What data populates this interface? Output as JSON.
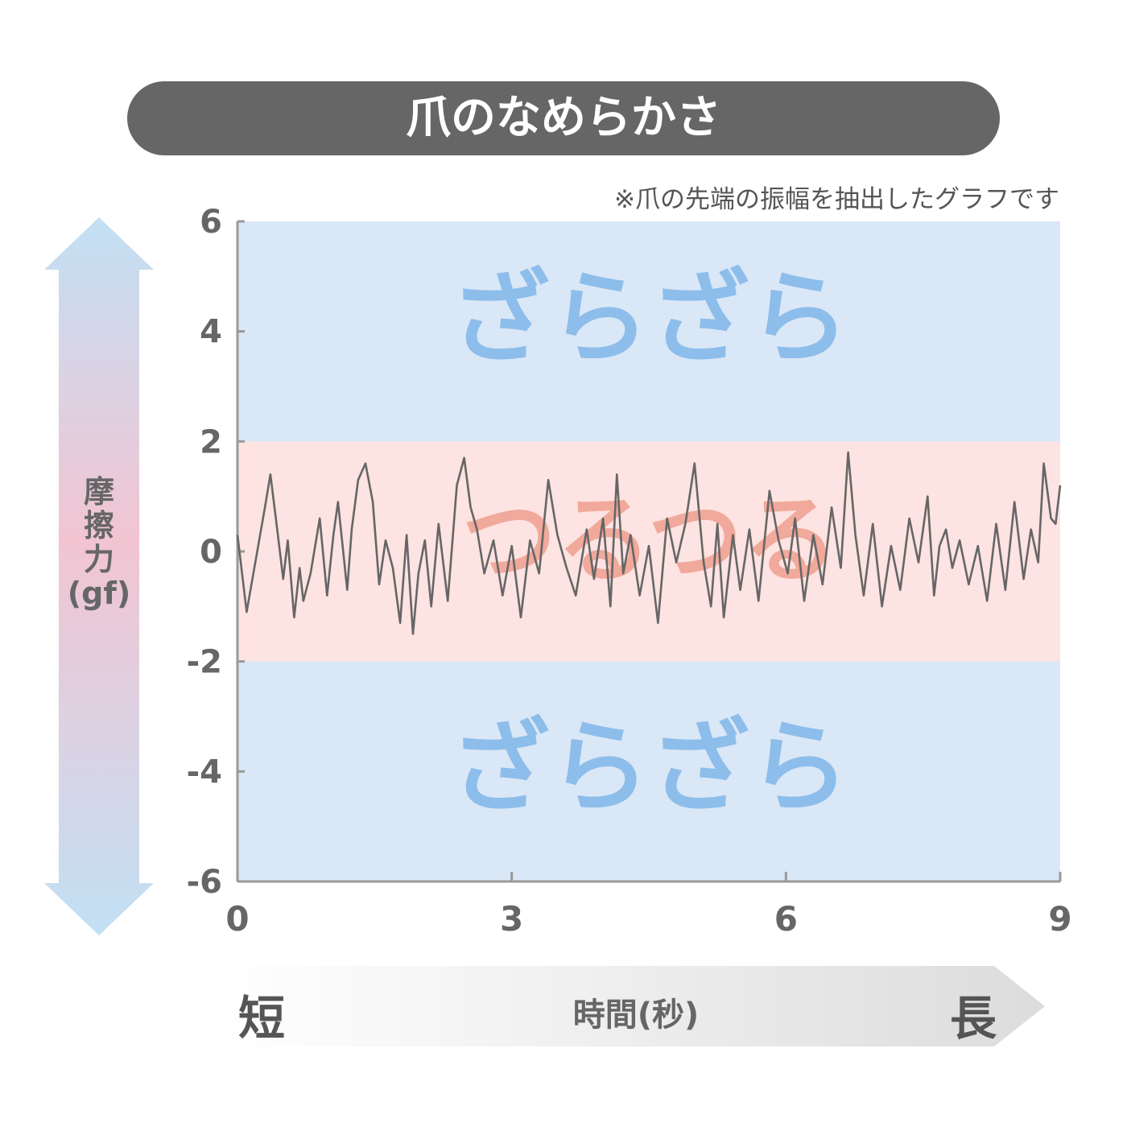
{
  "header": {
    "title": "爪のなめらかさ",
    "note": "※爪の先端の振幅を抽出したグラフです"
  },
  "colors": {
    "title_bg": "#666666",
    "zagizagi_band": "#d9e7f7",
    "tsurutsuru_band": "#fde3e1",
    "zagizagi_text": "#8dbdea",
    "tsurutsuru_text": "#f0a99b",
    "line": "#666666",
    "axis": "#999999"
  },
  "y_axis": {
    "label": "摩擦力(gf)",
    "label_lines": [
      "摩",
      "擦",
      "力",
      "(gf)"
    ]
  },
  "x_axis": {
    "label": "時間(秒)",
    "start_label": "短",
    "end_label": "長"
  },
  "zones": {
    "top": "ざらざら",
    "middle": "つるつる",
    "bottom": "ざらざら"
  },
  "chart_data": {
    "type": "line",
    "title": "爪のなめらかさ",
    "xlabel": "時間(秒)",
    "ylabel": "摩擦力(gf)",
    "xlim": [
      0,
      9
    ],
    "ylim": [
      -6,
      6
    ],
    "xticks": [
      0,
      3,
      6,
      9
    ],
    "yticks": [
      6,
      4,
      2,
      0,
      -2,
      -4,
      -6
    ],
    "grid": false,
    "bands": [
      {
        "from": 2,
        "to": 6,
        "label": "ざらざら"
      },
      {
        "from": -2,
        "to": 2,
        "label": "つるつる"
      },
      {
        "from": -6,
        "to": -2,
        "label": "ざらざら"
      }
    ],
    "series": [
      {
        "x": [
          0,
          0.1,
          0.3,
          0.36,
          0.42,
          0.5,
          0.55,
          0.62,
          0.68,
          0.72,
          0.8,
          0.9,
          0.98,
          1.05,
          1.1,
          1.2,
          1.25,
          1.32,
          1.4,
          1.48,
          1.55,
          1.62,
          1.7,
          1.78,
          1.85,
          1.92,
          1.98,
          2.05,
          2.12,
          2.2,
          2.3,
          2.4,
          2.48,
          2.55,
          2.62,
          2.7,
          2.8,
          2.9,
          3.0,
          3.1,
          3.2,
          3.3,
          3.4,
          3.5,
          3.6,
          3.7,
          3.82,
          3.9,
          4.0,
          4.08,
          4.15,
          4.22,
          4.3,
          4.4,
          4.5,
          4.6,
          4.7,
          4.8,
          4.9,
          5.0,
          5.1,
          5.18,
          5.25,
          5.32,
          5.42,
          5.5,
          5.6,
          5.7,
          5.82,
          5.92,
          6.02,
          6.1,
          6.2,
          6.3,
          6.4,
          6.5,
          6.6,
          6.68,
          6.76,
          6.85,
          6.95,
          7.05,
          7.15,
          7.25,
          7.35,
          7.45,
          7.55,
          7.62,
          7.68,
          7.75,
          7.82,
          7.9,
          8.0,
          8.1,
          8.2,
          8.3,
          8.4,
          8.5,
          8.6,
          8.68,
          8.76,
          8.82,
          8.9,
          8.95,
          9.0
        ],
        "y": [
          0.3,
          -1.1,
          0.8,
          1.4,
          0.6,
          -0.5,
          0.2,
          -1.2,
          -0.3,
          -0.9,
          -0.4,
          0.6,
          -0.8,
          0.3,
          0.9,
          -0.7,
          0.4,
          1.3,
          1.6,
          0.9,
          -0.6,
          0.2,
          -0.3,
          -1.3,
          0.3,
          -1.5,
          -0.4,
          0.2,
          -1.0,
          0.5,
          -0.9,
          1.2,
          1.7,
          0.8,
          0.4,
          -0.4,
          0.2,
          -0.8,
          0.1,
          -1.2,
          0.2,
          -0.4,
          1.3,
          0.3,
          -0.3,
          -0.8,
          0.4,
          -0.5,
          0.6,
          -1.0,
          1.4,
          -0.4,
          0.3,
          -0.8,
          0.1,
          -1.3,
          0.6,
          -0.2,
          0.5,
          1.6,
          -0.2,
          -1.0,
          0.5,
          -1.2,
          0.3,
          -0.7,
          0.4,
          -0.9,
          1.1,
          0.2,
          -0.4,
          0.6,
          -0.9,
          0.3,
          -0.6,
          0.8,
          -0.3,
          1.8,
          0.3,
          -0.8,
          0.5,
          -1.0,
          0.1,
          -0.7,
          0.6,
          -0.2,
          1.0,
          -0.8,
          0.1,
          0.4,
          -0.3,
          0.2,
          -0.6,
          0.1,
          -0.9,
          0.5,
          -0.7,
          0.9,
          -0.5,
          0.4,
          -0.2,
          1.6,
          0.6,
          0.5,
          1.2
        ]
      }
    ]
  }
}
